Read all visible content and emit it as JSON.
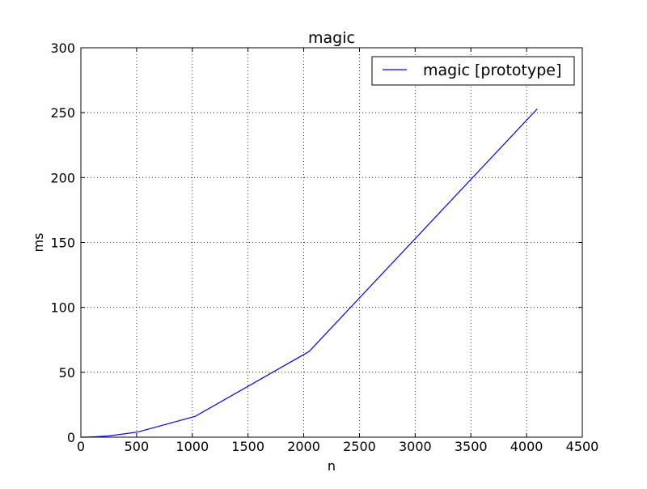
{
  "chart_data": {
    "type": "line",
    "title": "magic",
    "xlabel": "n",
    "ylabel": "ms",
    "xlim": [
      0,
      4500
    ],
    "ylim": [
      0,
      300
    ],
    "xticks": [
      0,
      500,
      1000,
      1500,
      2000,
      2500,
      3000,
      3500,
      4000,
      4500
    ],
    "yticks": [
      0,
      50,
      100,
      150,
      200,
      250,
      300
    ],
    "grid": true,
    "legend_position": "top-right",
    "series": [
      {
        "name": "magic [prototype]",
        "color": "#0000ff",
        "x": [
          4,
          8,
          16,
          32,
          64,
          128,
          256,
          512,
          1024,
          2048,
          4096
        ],
        "y": [
          0.0,
          0.0,
          0.0,
          0.0,
          0.1,
          0.3,
          1.0,
          4.0,
          16.0,
          66.0,
          253.0
        ]
      }
    ]
  }
}
